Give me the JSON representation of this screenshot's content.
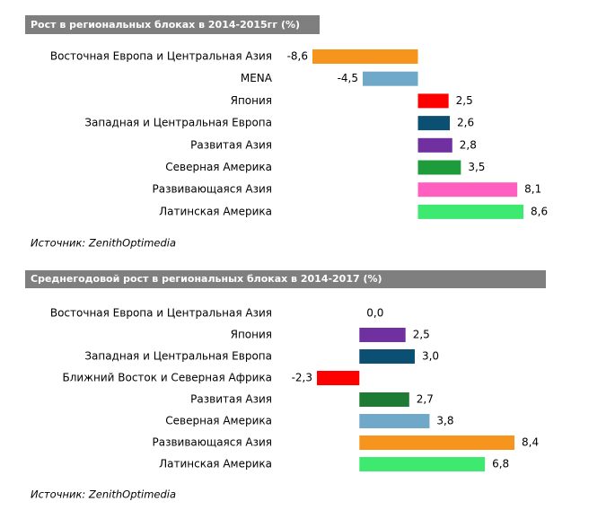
{
  "chart_data": [
    {
      "type": "bar",
      "orientation": "horizontal",
      "title": "Рост в региональных блоках в 2014-2015гг  (%)",
      "categories": [
        "Восточная Европа и Центральная Азия",
        "MENA",
        "Япония",
        "Западная и Центральная Европа",
        "Развитая Азия",
        "Северная Америка",
        "Развивающаяся Азия",
        "Латинская Америка"
      ],
      "values": [
        -8.6,
        -4.5,
        2.5,
        2.6,
        2.8,
        3.5,
        8.1,
        8.6
      ],
      "value_labels": [
        "-8,6",
        "-4,5",
        "2,5",
        "2,6",
        "2,8",
        "3,5",
        "8,1",
        "8,6"
      ],
      "colors": [
        "#f7941d",
        "#6fa8c8",
        "#ff0000",
        "#0b5073",
        "#7030a0",
        "#1e9c3c",
        "#ff5fbf",
        "#3dea6f"
      ],
      "source": "Источник: ZenithOptimedia"
    },
    {
      "type": "bar",
      "orientation": "horizontal",
      "title": "Среднегодовой рост в региональных блоках в 2014-2017 (%)",
      "categories": [
        "Восточная Европа и Центральная Азия",
        "Япония",
        "Западная и Центральная Европа",
        "Ближний Восток и Северная Африка",
        "Развитая Азия",
        "Северная Америка",
        "Развивающаяся Азия",
        "Латинская Америка"
      ],
      "values": [
        0.0,
        2.5,
        3.0,
        -2.3,
        2.7,
        3.8,
        8.4,
        6.8
      ],
      "value_labels": [
        "0,0",
        "2,5",
        "3,0",
        "-2,3",
        "2,7",
        "3,8",
        "8,4",
        "6,8"
      ],
      "colors": [
        "#7f7f7f",
        "#7030a0",
        "#0b5073",
        "#ff0000",
        "#1e7b34",
        "#6fa8c8",
        "#f7941d",
        "#3dea6f"
      ],
      "source": "Источник: ZenithOptimedia"
    }
  ]
}
